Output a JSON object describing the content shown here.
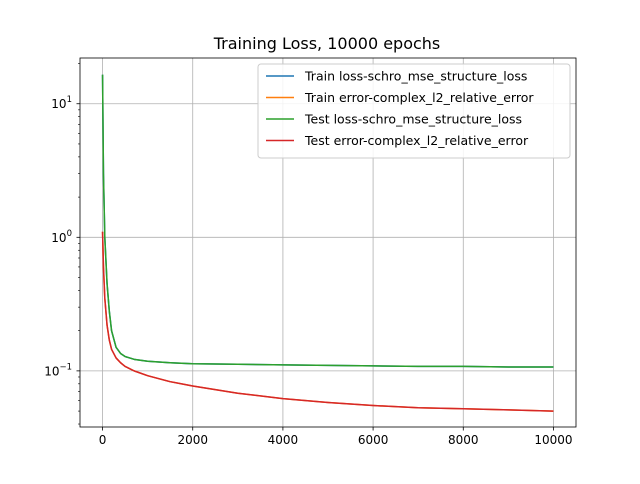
{
  "chart_data": {
    "type": "line",
    "title": "Training Loss, 10000 epochs",
    "xlabel": "",
    "ylabel": "",
    "xlim": [
      -500,
      10500
    ],
    "ylim": [
      0.038,
      22
    ],
    "yscale": "log",
    "grid": true,
    "legend_position": "top-right",
    "x_ticks": [
      {
        "value": 0,
        "label": "0"
      },
      {
        "value": 2000,
        "label": "2000"
      },
      {
        "value": 4000,
        "label": "4000"
      },
      {
        "value": 6000,
        "label": "6000"
      },
      {
        "value": 8000,
        "label": "8000"
      },
      {
        "value": 10000,
        "label": "10000"
      }
    ],
    "y_ticks": [
      {
        "value": 0.1,
        "base": "10",
        "exp": "−1"
      },
      {
        "value": 1,
        "base": "10",
        "exp": "0"
      },
      {
        "value": 10,
        "base": "10",
        "exp": "1"
      }
    ],
    "series": [
      {
        "name": "Train loss-schro_mse_structure_loss",
        "color": "#1f77b4",
        "x": [
          0,
          20,
          50,
          100,
          150,
          200,
          300,
          400,
          500,
          700,
          1000,
          1500,
          2000,
          3000,
          4000,
          5000,
          6000,
          7000,
          8000,
          9000,
          10000
        ],
        "y": [
          16.5,
          3.0,
          1.0,
          0.45,
          0.28,
          0.2,
          0.15,
          0.135,
          0.128,
          0.122,
          0.118,
          0.115,
          0.113,
          0.112,
          0.111,
          0.11,
          0.109,
          0.108,
          0.108,
          0.107,
          0.107
        ]
      },
      {
        "name": "Train error-complex_l2_relative_error",
        "color": "#ff7f0e",
        "x": [
          0,
          20,
          50,
          100,
          150,
          200,
          300,
          400,
          500,
          700,
          1000,
          1500,
          2000,
          3000,
          4000,
          5000,
          6000,
          7000,
          8000,
          9000,
          10000
        ],
        "y": [
          1.1,
          0.6,
          0.35,
          0.22,
          0.17,
          0.145,
          0.125,
          0.115,
          0.108,
          0.1,
          0.092,
          0.083,
          0.077,
          0.068,
          0.062,
          0.058,
          0.055,
          0.053,
          0.052,
          0.051,
          0.05
        ]
      },
      {
        "name": "Test loss-schro_mse_structure_loss",
        "color": "#2ca02c",
        "x": [
          0,
          20,
          50,
          100,
          150,
          200,
          300,
          400,
          500,
          700,
          1000,
          1500,
          2000,
          3000,
          4000,
          5000,
          6000,
          7000,
          8000,
          9000,
          10000
        ],
        "y": [
          16.5,
          3.0,
          1.0,
          0.45,
          0.28,
          0.2,
          0.15,
          0.135,
          0.128,
          0.122,
          0.118,
          0.115,
          0.113,
          0.112,
          0.111,
          0.11,
          0.109,
          0.108,
          0.108,
          0.107,
          0.107
        ]
      },
      {
        "name": "Test error-complex_l2_relative_error",
        "color": "#d62728",
        "x": [
          0,
          20,
          50,
          100,
          150,
          200,
          300,
          400,
          500,
          700,
          1000,
          1500,
          2000,
          3000,
          4000,
          5000,
          6000,
          7000,
          8000,
          9000,
          10000
        ],
        "y": [
          1.1,
          0.6,
          0.35,
          0.22,
          0.17,
          0.145,
          0.125,
          0.115,
          0.108,
          0.1,
          0.092,
          0.083,
          0.077,
          0.068,
          0.062,
          0.058,
          0.055,
          0.053,
          0.052,
          0.051,
          0.05
        ]
      }
    ]
  }
}
